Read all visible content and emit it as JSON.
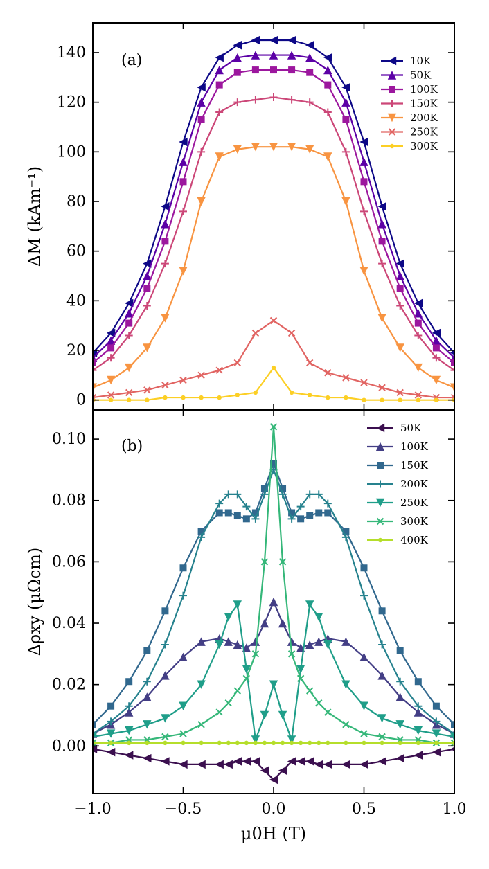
{
  "figure": {
    "xlabel": "μ0H (T)",
    "xlim": [
      -1.0,
      1.0
    ],
    "xticks": [
      -1.0,
      -0.5,
      0.0,
      0.5,
      1.0
    ],
    "xtick_labels": [
      "−1.0",
      "−0.5",
      "0.0",
      "0.5",
      "1.0"
    ]
  },
  "chart_data": [
    {
      "type": "line",
      "panel_label": "(a)",
      "ylabel": "ΔM (kAm⁻¹)",
      "xlim": [
        -1.0,
        1.0
      ],
      "ylim": [
        -4,
        152
      ],
      "yticks": [
        0,
        20,
        40,
        60,
        80,
        100,
        120,
        140
      ],
      "ytick_labels": [
        "0",
        "20",
        "40",
        "60",
        "80",
        "100",
        "120",
        "140"
      ],
      "legend_position": "top-right",
      "x": [
        -1.0,
        -0.9,
        -0.8,
        -0.7,
        -0.6,
        -0.5,
        -0.4,
        -0.3,
        -0.2,
        -0.1,
        0.0,
        0.1,
        0.2,
        0.3,
        0.4,
        0.5,
        0.6,
        0.7,
        0.8,
        0.9,
        1.0
      ],
      "series": [
        {
          "name": "10K",
          "marker": "triangle-left",
          "color": "#0d0887",
          "values": [
            19,
            27,
            39,
            55,
            78,
            104,
            126,
            138,
            143,
            145,
            145,
            145,
            143,
            138,
            126,
            104,
            78,
            55,
            39,
            27,
            19
          ]
        },
        {
          "name": "50K",
          "marker": "triangle-up",
          "color": "#5c01a6",
          "values": [
            17,
            24,
            35,
            50,
            71,
            96,
            120,
            133,
            138,
            139,
            139,
            139,
            138,
            133,
            120,
            96,
            71,
            50,
            35,
            24,
            17
          ]
        },
        {
          "name": "100K",
          "marker": "square",
          "color": "#9c179e",
          "values": [
            15,
            21,
            31,
            45,
            64,
            88,
            113,
            127,
            132,
            133,
            133,
            133,
            132,
            127,
            113,
            88,
            64,
            45,
            31,
            21,
            15
          ]
        },
        {
          "name": "150K",
          "marker": "plus",
          "color": "#cc4778",
          "values": [
            12,
            17,
            26,
            38,
            55,
            76,
            100,
            116,
            120,
            121,
            122,
            121,
            120,
            116,
            100,
            76,
            55,
            38,
            26,
            17,
            12
          ]
        },
        {
          "name": "200K",
          "marker": "triangle-down",
          "color": "#f89441",
          "values": [
            5,
            8,
            13,
            21,
            33,
            52,
            80,
            98,
            101,
            102,
            102,
            102,
            101,
            98,
            80,
            52,
            33,
            21,
            13,
            8,
            5
          ]
        },
        {
          "name": "250K",
          "marker": "x",
          "color": "#e16462",
          "values": [
            1,
            2,
            3,
            4,
            6,
            8,
            10,
            12,
            15,
            27,
            32,
            27,
            15,
            11,
            9,
            7,
            5,
            3,
            2,
            1,
            1
          ]
        },
        {
          "name": "300K",
          "marker": "dot",
          "color": "#fccf25",
          "values": [
            0,
            0,
            0,
            0,
            1,
            1,
            1,
            1,
            2,
            3,
            13,
            3,
            2,
            1,
            1,
            0,
            0,
            0,
            0,
            0,
            0
          ]
        }
      ]
    },
    {
      "type": "line",
      "panel_label": "(b)",
      "ylabel": "Δρxy (μΩcm)",
      "xlim": [
        -1.0,
        1.0
      ],
      "ylim": [
        -0.0155,
        0.1095
      ],
      "yticks": [
        0.0,
        0.02,
        0.04,
        0.06,
        0.08,
        0.1
      ],
      "ytick_labels": [
        "0.00",
        "0.02",
        "0.04",
        "0.06",
        "0.08",
        "0.10"
      ],
      "legend_position": "top-right",
      "x": [
        -1.0,
        -0.9,
        -0.8,
        -0.7,
        -0.6,
        -0.5,
        -0.4,
        -0.3,
        -0.25,
        -0.2,
        -0.15,
        -0.1,
        -0.05,
        0.0,
        0.05,
        0.1,
        0.15,
        0.2,
        0.25,
        0.3,
        0.4,
        0.5,
        0.6,
        0.7,
        0.8,
        0.9,
        1.0
      ],
      "series": [
        {
          "name": "50K",
          "marker": "triangle-left",
          "color": "#3b0f4f",
          "values": [
            -0.001,
            -0.002,
            -0.003,
            -0.004,
            -0.005,
            -0.006,
            -0.006,
            -0.006,
            -0.006,
            -0.005,
            -0.005,
            -0.005,
            -0.008,
            -0.011,
            -0.008,
            -0.005,
            -0.005,
            -0.005,
            -0.006,
            -0.006,
            -0.006,
            -0.006,
            -0.005,
            -0.004,
            -0.003,
            -0.002,
            -0.001
          ]
        },
        {
          "name": "100K",
          "marker": "triangle-up",
          "color": "#433e85",
          "values": [
            0.004,
            0.007,
            0.011,
            0.016,
            0.023,
            0.029,
            0.034,
            0.035,
            0.034,
            0.033,
            0.032,
            0.034,
            0.04,
            0.047,
            0.04,
            0.034,
            0.032,
            0.033,
            0.034,
            0.035,
            0.034,
            0.029,
            0.023,
            0.016,
            0.011,
            0.007,
            0.004
          ]
        },
        {
          "name": "150K",
          "marker": "square",
          "color": "#31688e",
          "values": [
            0.007,
            0.013,
            0.021,
            0.031,
            0.044,
            0.058,
            0.07,
            0.076,
            0.076,
            0.075,
            0.074,
            0.076,
            0.084,
            0.092,
            0.084,
            0.076,
            0.074,
            0.075,
            0.076,
            0.076,
            0.07,
            0.058,
            0.044,
            0.031,
            0.021,
            0.013,
            0.007
          ]
        },
        {
          "name": "200K",
          "marker": "plus",
          "color": "#26828e",
          "values": [
            0.004,
            0.008,
            0.013,
            0.021,
            0.033,
            0.049,
            0.068,
            0.079,
            0.082,
            0.082,
            0.078,
            0.074,
            0.082,
            0.09,
            0.082,
            0.074,
            0.078,
            0.082,
            0.082,
            0.079,
            0.068,
            0.049,
            0.033,
            0.021,
            0.013,
            0.008,
            0.004
          ]
        },
        {
          "name": "250K",
          "marker": "triangle-down",
          "color": "#1f9e89",
          "values": [
            0.003,
            0.004,
            0.005,
            0.007,
            0.009,
            0.013,
            0.02,
            0.033,
            0.042,
            0.046,
            0.025,
            0.002,
            0.01,
            0.02,
            0.01,
            0.002,
            0.025,
            0.046,
            0.042,
            0.033,
            0.02,
            0.013,
            0.009,
            0.007,
            0.005,
            0.004,
            0.003
          ]
        },
        {
          "name": "300K",
          "marker": "x",
          "color": "#35b779",
          "values": [
            0.001,
            0.001,
            0.002,
            0.002,
            0.003,
            0.004,
            0.007,
            0.011,
            0.014,
            0.018,
            0.022,
            0.03,
            0.06,
            0.104,
            0.06,
            0.03,
            0.022,
            0.018,
            0.014,
            0.011,
            0.007,
            0.004,
            0.003,
            0.002,
            0.002,
            0.001,
            0.001
          ]
        },
        {
          "name": "400K",
          "marker": "dot",
          "color": "#b5de2b",
          "values": [
            0.001,
            0.001,
            0.001,
            0.001,
            0.001,
            0.001,
            0.001,
            0.001,
            0.001,
            0.001,
            0.001,
            0.001,
            0.001,
            0.001,
            0.001,
            0.001,
            0.001,
            0.001,
            0.001,
            0.001,
            0.001,
            0.001,
            0.001,
            0.001,
            0.001,
            0.001,
            0.001
          ]
        }
      ]
    }
  ]
}
